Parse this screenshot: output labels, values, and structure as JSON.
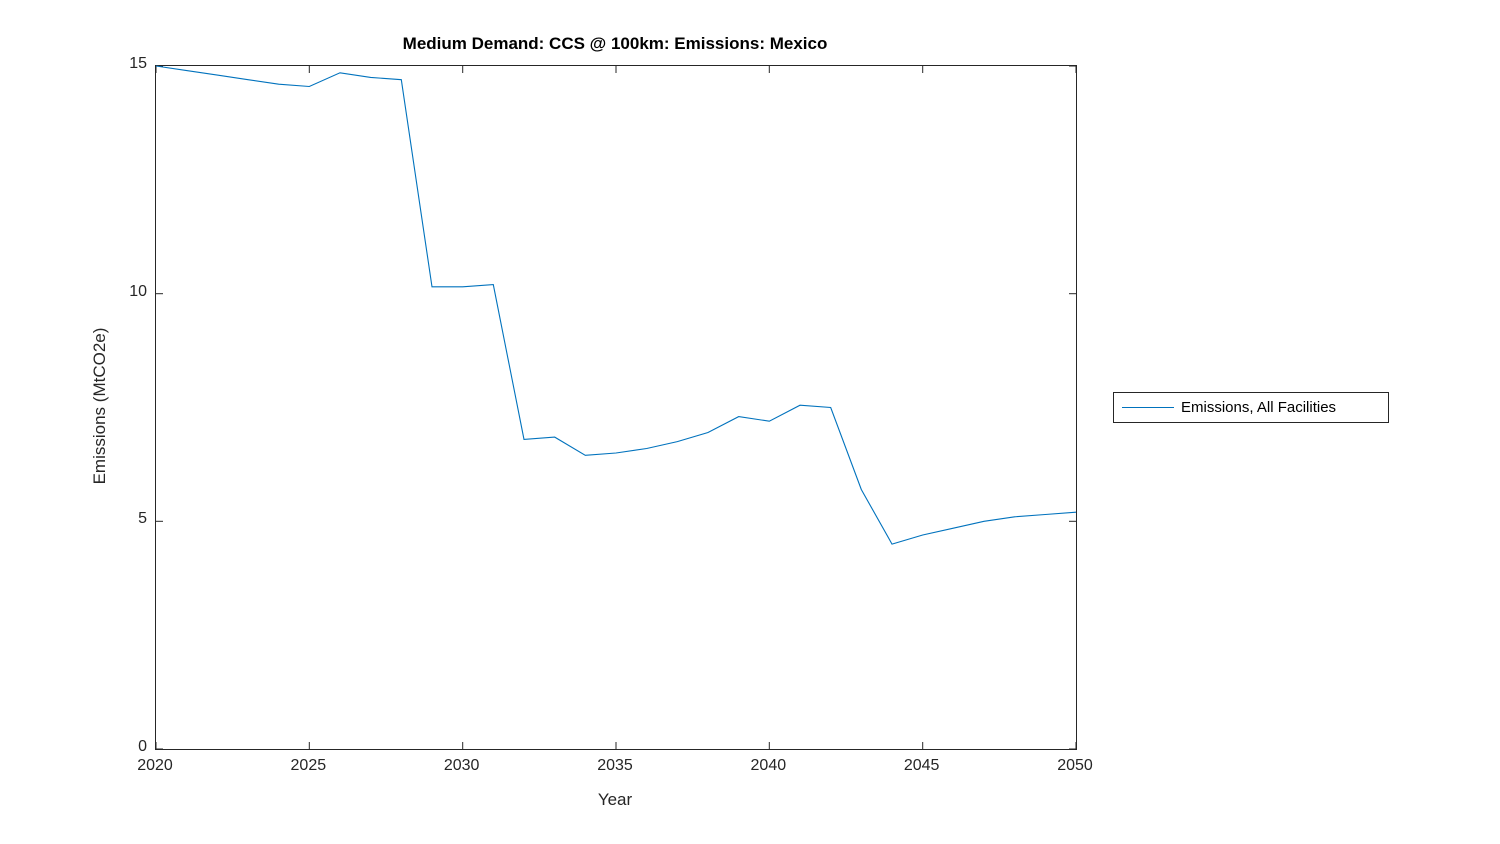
{
  "chart_data": {
    "type": "line",
    "title": "Medium Demand: CCS @ 100km: Emissions: Mexico",
    "xlabel": "Year",
    "ylabel": "Emissions (MtCO2e)",
    "xlim": [
      2020,
      2050
    ],
    "ylim": [
      0,
      15
    ],
    "xticks": [
      2020,
      2025,
      2030,
      2035,
      2040,
      2045,
      2050
    ],
    "yticks": [
      0,
      5,
      10,
      15
    ],
    "grid": false,
    "legend_position": "right-outside",
    "axes_color": "#262626",
    "series": [
      {
        "name": "Emissions, All Facilities",
        "color": "#0072BD",
        "x": [
          2020,
          2021,
          2022,
          2023,
          2024,
          2025,
          2026,
          2027,
          2028,
          2029,
          2030,
          2031,
          2032,
          2033,
          2034,
          2035,
          2036,
          2037,
          2038,
          2039,
          2040,
          2041,
          2042,
          2043,
          2044,
          2045,
          2046,
          2047,
          2048,
          2049,
          2050
        ],
        "values": [
          15.0,
          14.9,
          14.8,
          14.7,
          14.6,
          14.55,
          14.85,
          14.75,
          14.7,
          10.15,
          10.15,
          10.2,
          6.8,
          6.85,
          6.45,
          6.5,
          6.6,
          6.75,
          6.95,
          7.3,
          7.2,
          7.55,
          7.5,
          5.7,
          4.5,
          4.7,
          4.85,
          5.0,
          5.1,
          5.15,
          5.2
        ]
      }
    ]
  },
  "legend": {
    "entries": [
      {
        "label": "Emissions, All Facilities",
        "color": "#0072BD"
      }
    ]
  }
}
